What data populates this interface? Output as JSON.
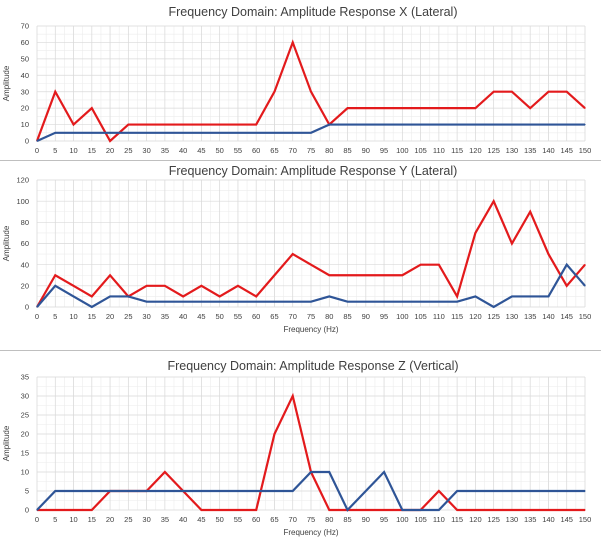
{
  "colors": {
    "series_red": "#e31a1c",
    "series_blue": "#2f5597",
    "grid": "#d9d9d9",
    "text": "#404040"
  },
  "chart_data": [
    {
      "type": "line",
      "title": "Frequency Domain: Amplitude Response X (Lateral)",
      "xlabel": "",
      "ylabel": "Amplitude",
      "ylim": [
        0,
        70
      ],
      "yticks": [
        0,
        10,
        20,
        30,
        40,
        50,
        60,
        70
      ],
      "x": [
        0,
        5,
        10,
        15,
        20,
        25,
        30,
        35,
        40,
        45,
        50,
        55,
        60,
        65,
        70,
        75,
        80,
        85,
        90,
        95,
        100,
        105,
        110,
        115,
        120,
        125,
        130,
        135,
        140,
        145,
        150
      ],
      "grid": true,
      "legend": "none",
      "series": [
        {
          "color": "#e31a1c",
          "values": [
            0,
            30,
            10,
            20,
            0,
            10,
            10,
            10,
            10,
            10,
            10,
            10,
            10,
            30,
            60,
            30,
            10,
            20,
            20,
            20,
            20,
            20,
            20,
            20,
            20,
            30,
            30,
            20,
            30,
            30,
            20
          ]
        },
        {
          "color": "#2f5597",
          "values": [
            0,
            5,
            5,
            5,
            5,
            5,
            5,
            5,
            5,
            5,
            5,
            5,
            5,
            5,
            5,
            5,
            10,
            10,
            10,
            10,
            10,
            10,
            10,
            10,
            10,
            10,
            10,
            10,
            10,
            10,
            10
          ]
        }
      ]
    },
    {
      "type": "line",
      "title": "Frequency Domain: Amplitude Response Y (Lateral)",
      "xlabel": "Frequency (Hz)",
      "ylabel": "Amplitude",
      "ylim": [
        0,
        120
      ],
      "yticks": [
        0,
        20,
        40,
        60,
        80,
        100,
        120
      ],
      "x": [
        0,
        5,
        10,
        15,
        20,
        25,
        30,
        35,
        40,
        45,
        50,
        55,
        60,
        65,
        70,
        75,
        80,
        85,
        90,
        95,
        100,
        105,
        110,
        115,
        120,
        125,
        130,
        135,
        140,
        145,
        150
      ],
      "grid": true,
      "legend": "none",
      "series": [
        {
          "color": "#e31a1c",
          "values": [
            0,
            30,
            20,
            10,
            30,
            10,
            20,
            20,
            10,
            20,
            10,
            20,
            10,
            30,
            50,
            40,
            30,
            30,
            30,
            30,
            30,
            40,
            40,
            10,
            70,
            100,
            60,
            90,
            50,
            20,
            40
          ]
        },
        {
          "color": "#2f5597",
          "values": [
            0,
            20,
            10,
            0,
            10,
            10,
            5,
            5,
            5,
            5,
            5,
            5,
            5,
            5,
            5,
            5,
            10,
            5,
            5,
            5,
            5,
            5,
            5,
            5,
            10,
            0,
            10,
            10,
            10,
            40,
            20
          ]
        }
      ]
    },
    {
      "type": "line",
      "title": "Frequency Domain: Amplitude Response Z (Vertical)",
      "xlabel": "Frequency (Hz)",
      "ylabel": "Amplitude",
      "ylim": [
        0,
        35
      ],
      "yticks": [
        0,
        5,
        10,
        15,
        20,
        25,
        30,
        35
      ],
      "x": [
        0,
        5,
        10,
        15,
        20,
        25,
        30,
        35,
        40,
        45,
        50,
        55,
        60,
        65,
        70,
        75,
        80,
        85,
        90,
        95,
        100,
        105,
        110,
        115,
        120,
        125,
        130,
        135,
        140,
        145,
        150
      ],
      "grid": true,
      "legend": "none",
      "series": [
        {
          "color": "#e31a1c",
          "values": [
            0,
            0,
            0,
            0,
            5,
            5,
            5,
            10,
            5,
            0,
            0,
            0,
            0,
            20,
            30,
            10,
            0,
            0,
            0,
            0,
            0,
            0,
            5,
            0,
            0,
            0,
            0,
            0,
            0,
            0,
            0
          ]
        },
        {
          "color": "#2f5597",
          "values": [
            0,
            5,
            5,
            5,
            5,
            5,
            5,
            5,
            5,
            5,
            5,
            5,
            5,
            5,
            5,
            10,
            10,
            0,
            5,
            10,
            0,
            0,
            0,
            5,
            5,
            5,
            5,
            5,
            5,
            5,
            5
          ]
        }
      ]
    }
  ]
}
